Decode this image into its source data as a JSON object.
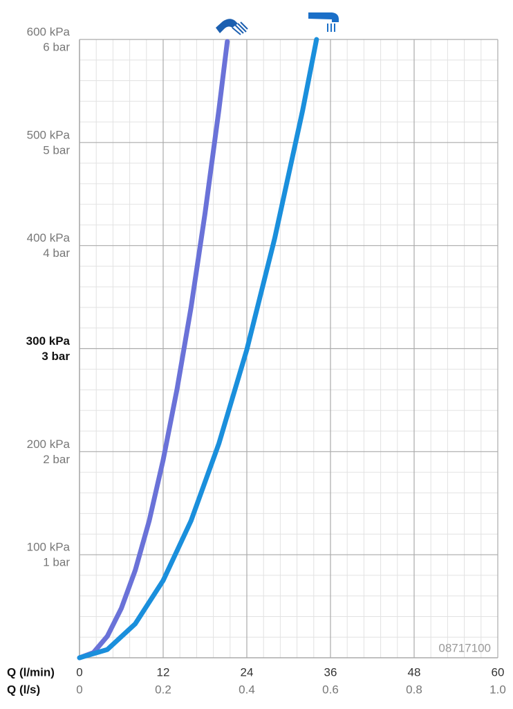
{
  "chart_data": {
    "type": "line",
    "x_axis_label": "Q (l/min)",
    "x2_axis_label": "Q (l/s)",
    "watermark": "08717100",
    "xlim": [
      0,
      60
    ],
    "xticks": [
      0,
      12,
      24,
      36,
      48,
      60
    ],
    "x2lim": [
      0,
      1
    ],
    "x2ticks": [
      0,
      0.2,
      0.4,
      0.6,
      0.8,
      {
        "value": 1,
        "label": "1.0"
      }
    ],
    "ylim": [
      0,
      600
    ],
    "yticks": [
      {
        "value": 100,
        "label": "100 kPa"
      },
      {
        "value": 200,
        "label": "200 kPa"
      },
      {
        "value": 300,
        "label": "300 kPa"
      },
      {
        "value": 400,
        "label": "400 kPa"
      },
      {
        "value": 500,
        "label": "500 kPa"
      },
      {
        "value": 600,
        "label": "600 kPa"
      }
    ],
    "y_bar_labels": [
      "1 bar",
      "2 bar",
      "3 bar",
      "4 bar",
      "5 bar",
      "6 bar"
    ],
    "bold_ytick": 300,
    "grid": true,
    "minor_divisions": 5,
    "series": [
      {
        "color": "#6a72d8",
        "x": [
          0,
          2,
          4,
          6,
          8,
          10,
          12,
          14,
          16,
          18,
          20,
          21.2
        ],
        "values": [
          0,
          5,
          21,
          48,
          85,
          133,
          192,
          261,
          340,
          431,
          532,
          598
        ]
      },
      {
        "color": "#1a8fdc",
        "x": [
          0,
          4,
          8,
          12,
          16,
          20,
          24,
          28,
          32,
          34
        ],
        "values": [
          0,
          8,
          33,
          75,
          133,
          208,
          299,
          407,
          531,
          600
        ]
      }
    ]
  }
}
